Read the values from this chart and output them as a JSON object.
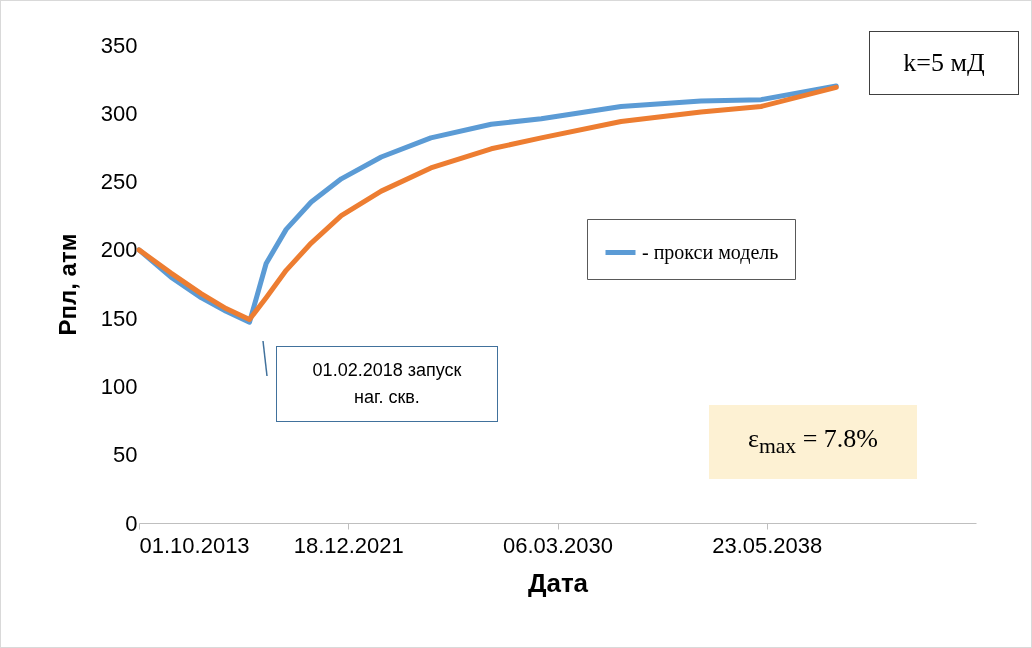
{
  "chart_data": {
    "type": "line",
    "xlabel": "Дата",
    "ylabel": "Рпл, атм",
    "xlim": [
      "2013-10-01",
      "2046-08-09"
    ],
    "xticks": [
      {
        "value": "2013-10-01",
        "label": "01.10.2013"
      },
      {
        "value": "2021-12-18",
        "label": "18.12.2021"
      },
      {
        "value": "2030-03-06",
        "label": "06.03.2030"
      },
      {
        "value": "2038-05-23",
        "label": "23.05.2038"
      }
    ],
    "ylim": [
      0,
      350
    ],
    "yticks": [
      0,
      50,
      100,
      150,
      200,
      250,
      300,
      350
    ],
    "legend": "right",
    "marker": "none",
    "line_style": "solid",
    "series": [
      {
        "name": "- прокси модель",
        "color": "#5b9bd5",
        "x": [
          "2013-10-01",
          "2015-01-03",
          "2016-03-09",
          "2017-03-03",
          "2018-02-01",
          "2018-09-28",
          "2019-07-12",
          "2020-07-05",
          "2021-09-09",
          "2023-04-05",
          "2025-03-16",
          "2027-07-30",
          "2029-07-16",
          "2032-09-02",
          "2035-10-23",
          "2038-03-03",
          "2041-02-12"
        ],
        "values": [
          200,
          180,
          165,
          155,
          147,
          190,
          215,
          235,
          252,
          268,
          282,
          292,
          296,
          305,
          309,
          310,
          320
        ]
      },
      {
        "color": "#ed7d31",
        "x": [
          "2013-10-01",
          "2015-01-03",
          "2016-03-09",
          "2017-03-03",
          "2018-02-01",
          "2018-09-28",
          "2019-07-12",
          "2020-07-05",
          "2021-09-09",
          "2023-04-05",
          "2025-03-16",
          "2027-07-30",
          "2029-07-16",
          "2032-09-02",
          "2035-10-23",
          "2038-03-03",
          "2041-02-12"
        ],
        "values": [
          200,
          183,
          168,
          157,
          149,
          165,
          185,
          205,
          225,
          243,
          260,
          274,
          282,
          294,
          301,
          305,
          319
        ]
      }
    ],
    "annotations": [
      "k=5 мД",
      "01.02.2018 запуск наг. скв.",
      "ε$_{max}$ = 7.8%"
    ]
  }
}
